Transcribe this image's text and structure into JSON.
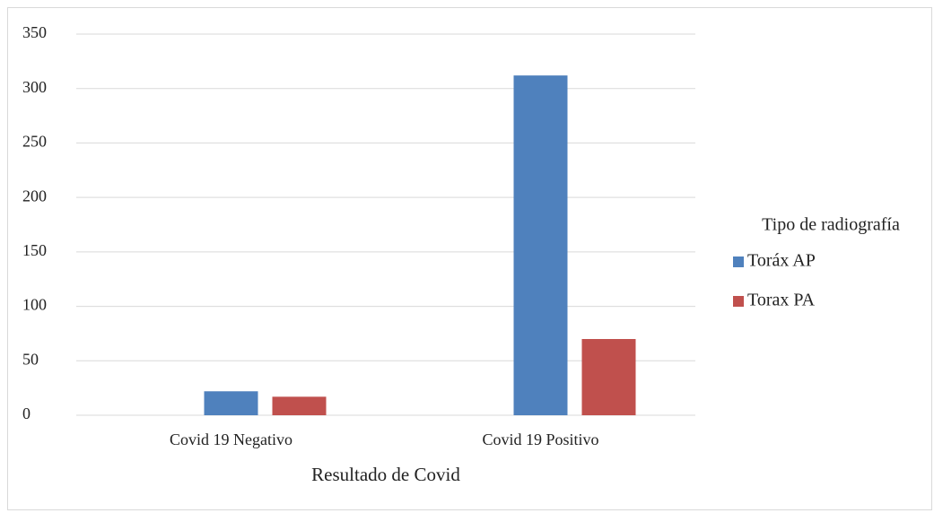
{
  "chart_data": {
    "type": "bar",
    "x_label": "Resultado de Covid",
    "legend_title": "Tipo de radiografía",
    "categories": [
      "Covid 19 Negativo",
      "Covid 19 Positivo"
    ],
    "series": [
      {
        "name": "Toráx AP",
        "color": "#4f81bd",
        "values": [
          22,
          312
        ]
      },
      {
        "name": "Torax PA",
        "color": "#c0504d",
        "values": [
          17,
          70
        ]
      }
    ],
    "ylim": [
      0,
      350
    ],
    "yticks": [
      0,
      50,
      100,
      150,
      200,
      250,
      300,
      350
    ],
    "grid": true,
    "legend": "right"
  }
}
